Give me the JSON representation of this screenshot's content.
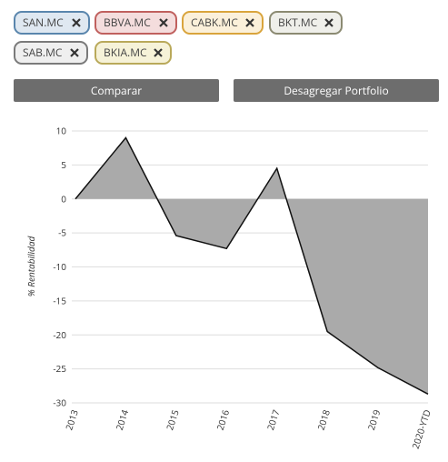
{
  "tags": [
    "SAN.MC",
    "BBVA.MC",
    "CABK.MC",
    "BKT.MC",
    "SAB.MC",
    "BKIA.MC"
  ],
  "buttons": [
    "Comparar",
    "Desagregar Portfolio"
  ],
  "chart_data": {
    "type": "area",
    "y_label": "% Rentabilidad",
    "categories": [
      "2013",
      "2014",
      "2015",
      "2016",
      "2017",
      "2018",
      "2019",
      "2020-YTD"
    ],
    "values": [
      0,
      9,
      -5.4,
      -7.3,
      4.5,
      -19.5,
      -24.8,
      -28.7
    ],
    "color": "#aaaaaa",
    "line_color": "#111111",
    "ylim": [
      -30,
      10
    ],
    "yticks": [
      10,
      5,
      0,
      -5,
      -10,
      -15,
      -20,
      -25,
      -30
    ],
    "grid": true
  }
}
